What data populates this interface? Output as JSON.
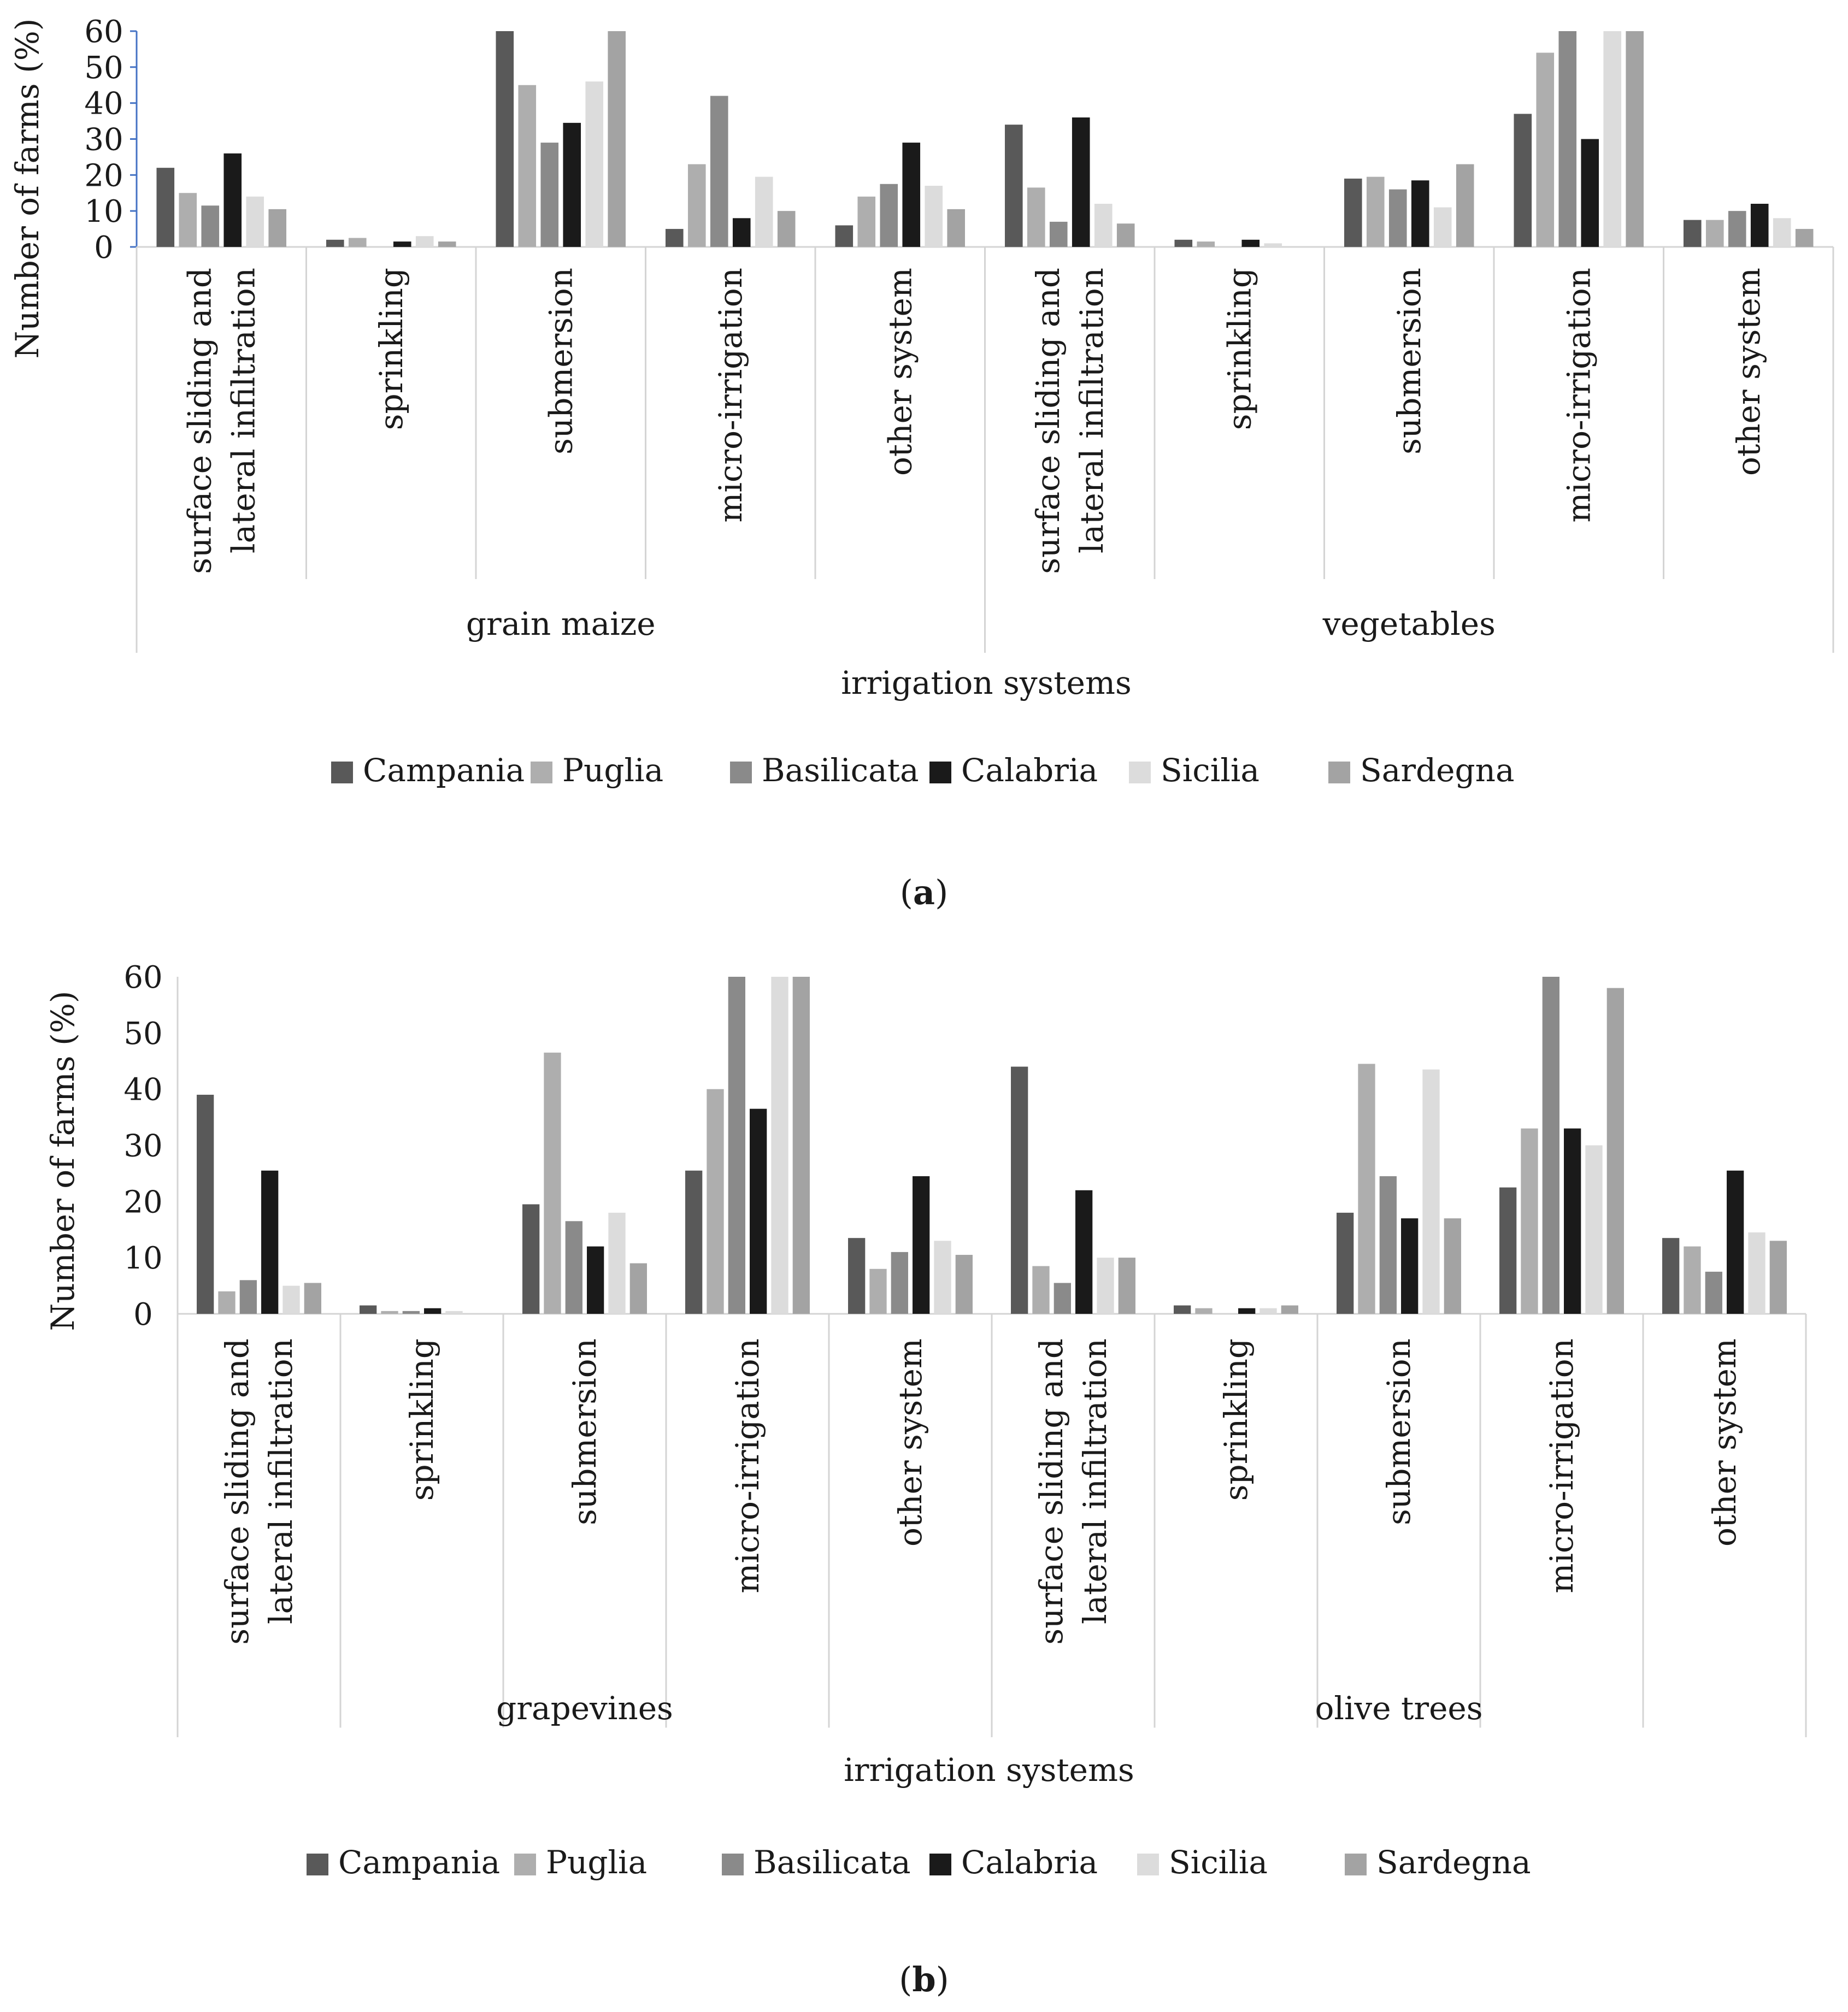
{
  "figure": {
    "series_colors": [
      "#595959",
      "#aeaeae",
      "#8a8a8a",
      "#1a1a1a",
      "#dcdcdc",
      "#a3a3a3"
    ],
    "axis_color": "#d4d4d4",
    "value_axis_color": "#4472c4"
  },
  "chart_data": [
    {
      "type": "bar",
      "panel_label": "(a)",
      "panel_letter": "a",
      "ylabel": "Number of farms (%)",
      "xlabel": "irrigation systems",
      "ylim": [
        0,
        60
      ],
      "yticks": [
        0,
        10,
        20,
        30,
        40,
        50,
        60
      ],
      "legend_position": "bottom",
      "groups": [
        {
          "name": "grain maize",
          "categories": [
            [
              "surface sliding and",
              "lateral infiltration"
            ],
            [
              "sprinkling"
            ],
            [
              "submersion"
            ],
            [
              "micro-irrigation"
            ],
            [
              "other system"
            ]
          ]
        },
        {
          "name": "vegetables",
          "categories": [
            [
              "surface sliding and",
              "lateral infiltration"
            ],
            [
              "sprinkling"
            ],
            [
              "submersion"
            ],
            [
              "micro-irrigation"
            ],
            [
              "other system"
            ]
          ]
        }
      ],
      "series": [
        {
          "name": "Campania",
          "values": [
            22,
            2,
            60,
            5,
            6,
            34,
            2,
            19,
            37,
            7.5
          ]
        },
        {
          "name": "Puglia",
          "values": [
            15,
            2.5,
            45,
            23,
            14,
            16.5,
            1.5,
            19.5,
            54,
            7.5
          ]
        },
        {
          "name": "Basilicata",
          "values": [
            11.5,
            0,
            29,
            42,
            17.5,
            7,
            0,
            16,
            60,
            10
          ]
        },
        {
          "name": "Calabria",
          "values": [
            26,
            1.5,
            34.5,
            8,
            29,
            36,
            2,
            18.5,
            30,
            12
          ]
        },
        {
          "name": "Sicilia",
          "values": [
            14,
            3,
            46,
            19.5,
            17,
            12,
            1,
            11,
            60,
            8
          ]
        },
        {
          "name": "Sardegna",
          "values": [
            10.5,
            1.5,
            60,
            10,
            10.5,
            6.5,
            0,
            23,
            60,
            5
          ]
        }
      ]
    },
    {
      "type": "bar",
      "panel_label": "(b)",
      "panel_letter": "b",
      "ylabel": "Number of farms (%)",
      "xlabel": "irrigation systems",
      "ylim": [
        0,
        60
      ],
      "yticks": [
        0,
        10,
        20,
        30,
        40,
        50,
        60
      ],
      "legend_position": "bottom",
      "groups": [
        {
          "name": "grapevines",
          "categories": [
            [
              "surface sliding and",
              "lateral infiltration"
            ],
            [
              "sprinkling"
            ],
            [
              "submersion"
            ],
            [
              "micro-irrigation"
            ],
            [
              "other system"
            ]
          ]
        },
        {
          "name": "olive trees",
          "categories": [
            [
              "surface sliding and",
              "lateral infiltration"
            ],
            [
              "sprinkling"
            ],
            [
              "submersion"
            ],
            [
              "micro-irrigation"
            ],
            [
              "other system"
            ]
          ]
        }
      ],
      "series": [
        {
          "name": "Campania",
          "values": [
            39,
            1.5,
            19.5,
            25.5,
            13.5,
            44,
            1.5,
            18,
            22.5,
            13.5
          ]
        },
        {
          "name": "Puglia",
          "values": [
            4,
            0.5,
            46.5,
            40,
            8,
            8.5,
            1,
            44.5,
            33,
            12
          ]
        },
        {
          "name": "Basilicata",
          "values": [
            6,
            0.5,
            16.5,
            60,
            11,
            5.5,
            0,
            24.5,
            60,
            7.5
          ]
        },
        {
          "name": "Calabria",
          "values": [
            25.5,
            1,
            12,
            36.5,
            24.5,
            22,
            1,
            17,
            33,
            25.5
          ]
        },
        {
          "name": "Sicilia",
          "values": [
            5,
            0.5,
            18,
            60,
            13,
            10,
            1,
            43.5,
            30,
            14.5
          ]
        },
        {
          "name": "Sardegna",
          "values": [
            5.5,
            0,
            9,
            60,
            10.5,
            10,
            1.5,
            17,
            58,
            13
          ]
        }
      ]
    }
  ]
}
